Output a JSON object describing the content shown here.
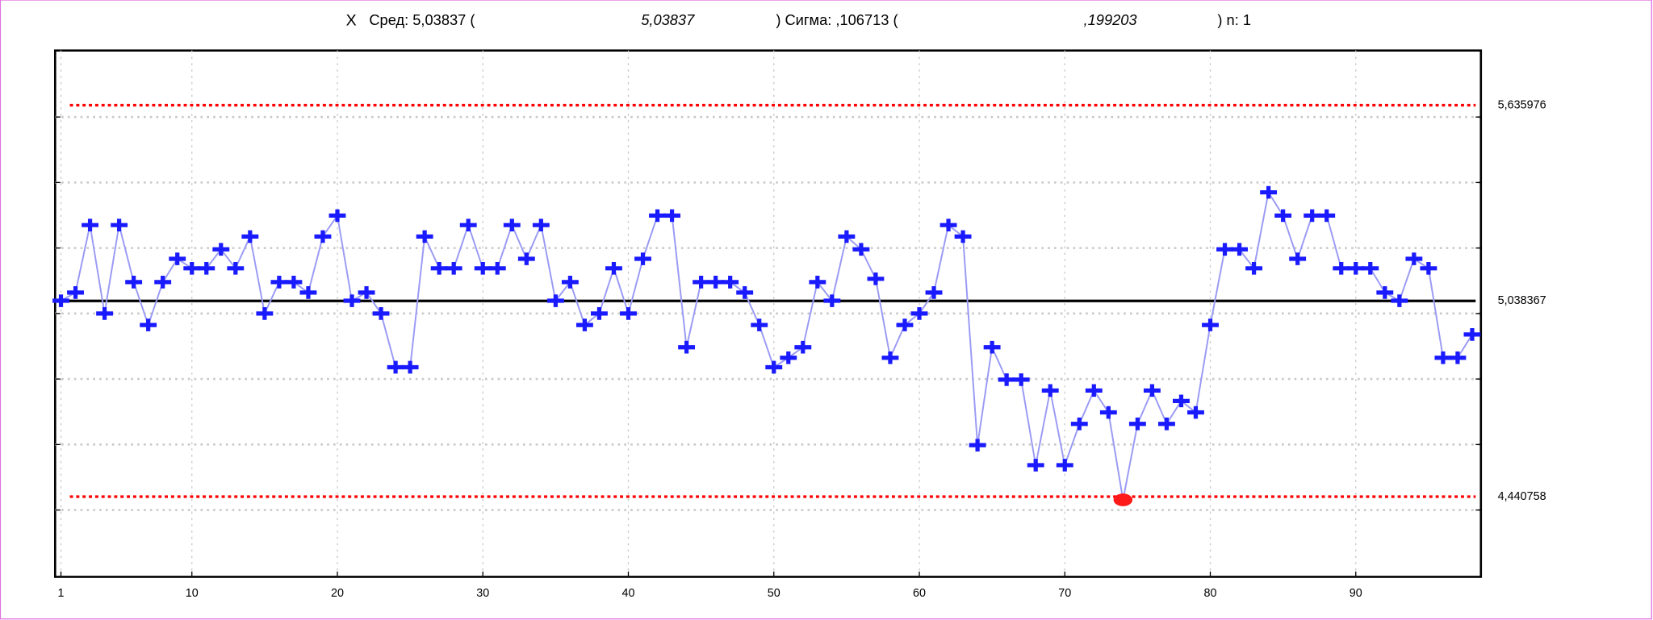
{
  "chart_data": {
    "type": "control",
    "title_parts": [
      {
        "text": "X",
        "italic": false
      },
      {
        "text": "Сред: 5,03837 (",
        "italic": false
      },
      {
        "text": "5,03837",
        "italic": true
      },
      {
        "text": ") Сигма: ,106713 (",
        "italic": false
      },
      {
        "text": ",199203",
        "italic": true
      },
      {
        "text": ") n: 1",
        "italic": false
      }
    ],
    "x": [
      1,
      2,
      3,
      4,
      5,
      6,
      7,
      8,
      9,
      10,
      11,
      12,
      13,
      14,
      15,
      16,
      17,
      18,
      19,
      20,
      21,
      22,
      23,
      24,
      25,
      26,
      27,
      28,
      29,
      30,
      31,
      32,
      33,
      34,
      35,
      36,
      37,
      38,
      39,
      40,
      41,
      42,
      43,
      44,
      45,
      46,
      47,
      48,
      49,
      50,
      51,
      52,
      53,
      54,
      55,
      56,
      57,
      58,
      59,
      60,
      61,
      62,
      63,
      64,
      65,
      66,
      67,
      68,
      69,
      70,
      71,
      72,
      73,
      74,
      75,
      76,
      77,
      78,
      79,
      80,
      81,
      82,
      83,
      84,
      85,
      86,
      87,
      88,
      89,
      90,
      91,
      92,
      93,
      94,
      95,
      96,
      97,
      98
    ],
    "values": [
      5.039,
      5.064,
      5.27,
      5.0,
      5.27,
      5.096,
      4.965,
      5.096,
      5.167,
      5.138,
      5.138,
      5.196,
      5.138,
      5.235,
      5.0,
      5.096,
      5.096,
      5.064,
      5.235,
      5.299,
      5.039,
      5.064,
      5.0,
      4.836,
      4.836,
      5.235,
      5.138,
      5.138,
      5.27,
      5.138,
      5.138,
      5.27,
      5.167,
      5.27,
      5.039,
      5.096,
      4.965,
      5.0,
      5.138,
      5.0,
      5.167,
      5.299,
      5.299,
      4.897,
      5.096,
      5.096,
      5.096,
      5.064,
      4.965,
      4.836,
      4.865,
      4.897,
      5.096,
      5.039,
      5.235,
      5.196,
      5.106,
      4.865,
      4.965,
      5.0,
      5.064,
      5.27,
      5.235,
      4.598,
      4.897,
      4.798,
      4.798,
      4.537,
      4.765,
      4.537,
      4.663,
      4.765,
      4.698,
      4.431,
      4.663,
      4.765,
      4.663,
      4.733,
      4.698,
      4.965,
      5.196,
      5.196,
      5.138,
      5.37,
      5.299,
      5.167,
      5.299,
      5.299,
      5.138,
      5.138,
      5.138,
      5.064,
      5.039,
      5.167,
      5.138,
      4.865,
      4.865,
      4.936
    ],
    "line_color": "#9a9af5",
    "marker_color": "#1a1aff",
    "out_color": "#ff1a1a",
    "center": {
      "value": 5.038367,
      "label": "5,038367"
    },
    "ucl": {
      "value": 5.635976,
      "label": "5,635976"
    },
    "lcl": {
      "value": 4.440758,
      "label": "4,440758"
    },
    "center_color": "#000000",
    "limit_color": "#ff0000",
    "xlim": [
      0.6,
      98.6
    ],
    "xticks": [
      1,
      10,
      20,
      30,
      40,
      50,
      60,
      70,
      80,
      90
    ],
    "ylim": [
      4.196,
      5.803
    ],
    "yticks": [
      4.4,
      4.6,
      4.8,
      5.0,
      5.2,
      5.4,
      5.6
    ],
    "grid": true
  }
}
